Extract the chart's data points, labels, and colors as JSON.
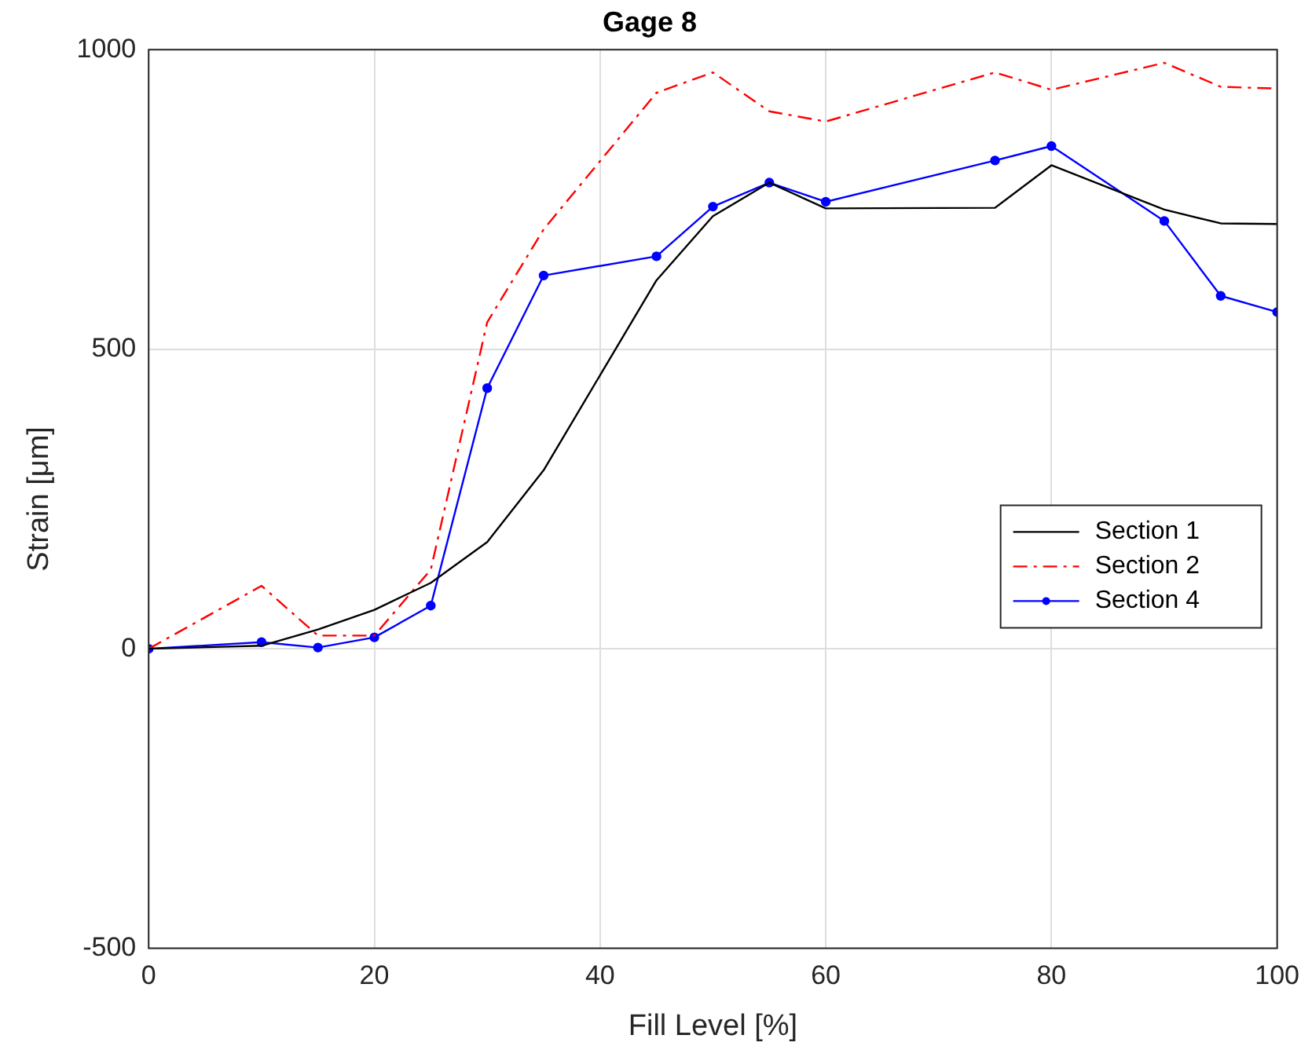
{
  "chart_data": {
    "type": "line",
    "title": "Gage 8",
    "xlabel": "Fill Level [%]",
    "ylabel": "Strain [μm]",
    "xlim": [
      0,
      100
    ],
    "xticks": [
      0,
      20,
      40,
      60,
      80,
      100
    ],
    "ylim": [
      -500,
      1000
    ],
    "yticks": [
      -500,
      0,
      500,
      1000
    ],
    "grid": true,
    "legend": "right",
    "series": [
      {
        "name": "Section 1",
        "color": "#000000",
        "line_style": "solid",
        "marker": "none",
        "x": [
          0,
          10,
          15,
          20,
          25,
          30,
          35,
          45,
          50,
          55,
          60,
          75,
          80,
          90,
          95,
          100
        ],
        "values": [
          0,
          5,
          32,
          65,
          110,
          178,
          298,
          615,
          722,
          778,
          735,
          736,
          807,
          733,
          710,
          709
        ]
      },
      {
        "name": "Section 2",
        "color": "#ff0000",
        "line_style": "dashdot",
        "marker": "none",
        "x": [
          0,
          10,
          15,
          20,
          25,
          30,
          35,
          45,
          50,
          55,
          60,
          75,
          80,
          90,
          95,
          100
        ],
        "values": [
          0,
          105,
          22,
          22,
          132,
          545,
          700,
          928,
          962,
          897,
          880,
          962,
          933,
          978,
          938,
          935
        ]
      },
      {
        "name": "Section 4",
        "color": "#0000ff",
        "line_style": "solid",
        "marker": "circle",
        "x": [
          0,
          10,
          15,
          20,
          25,
          30,
          35,
          45,
          50,
          55,
          60,
          75,
          80,
          90,
          95,
          100
        ],
        "values": [
          0,
          11,
          2,
          19,
          72,
          435,
          623,
          655,
          738,
          778,
          746,
          815,
          839,
          714,
          589,
          562
        ]
      }
    ]
  }
}
